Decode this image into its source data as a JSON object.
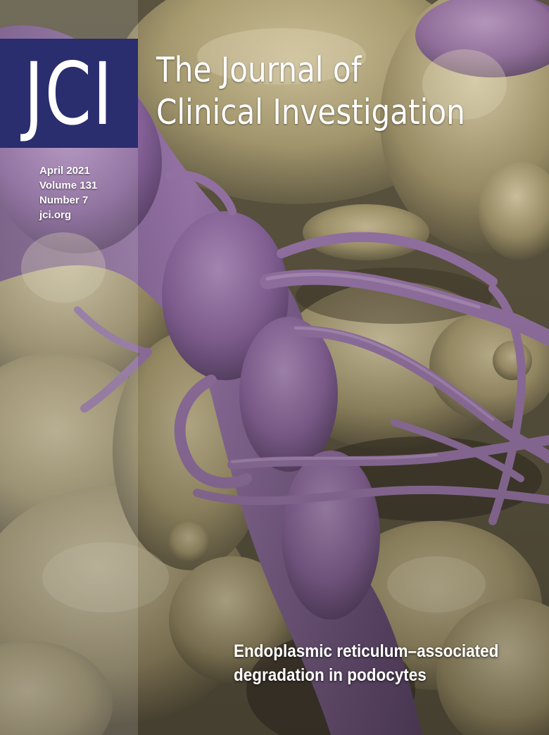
{
  "logo": {
    "text": "JCI"
  },
  "masthead": {
    "line1": "The Journal of",
    "line2": "Clinical Investigation"
  },
  "issue": {
    "date": "April 2021",
    "volume": "Volume 131",
    "number": "Number 7",
    "website": "jci.org"
  },
  "feature": {
    "line1": "Endoplasmic reticulum–associated",
    "line2": "degradation in podocytes"
  },
  "colors": {
    "logo_background": "#2a2d6e",
    "cell_purple": "#8e6aa3",
    "tissue_tan": "#a79a6f",
    "text": "#ffffff"
  }
}
